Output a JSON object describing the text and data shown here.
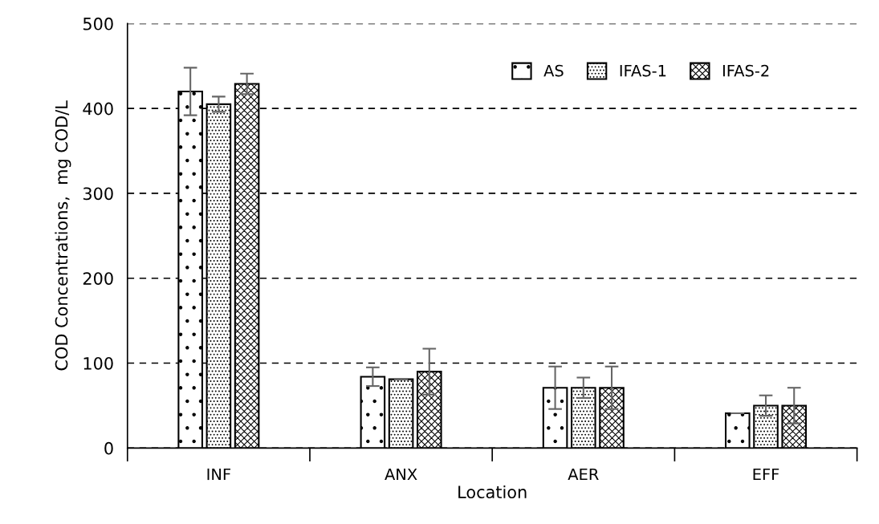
{
  "chart_data": {
    "type": "bar",
    "xlabel": "Location",
    "ylabel": "COD Concentrations,  mg COD/L",
    "categories": [
      "INF",
      "ANX",
      "AER",
      "EFF"
    ],
    "series": [
      {
        "name": "AS",
        "values": [
          420,
          84,
          71,
          41
        ],
        "errors": [
          28,
          11,
          25,
          0
        ]
      },
      {
        "name": "IFAS-1",
        "values": [
          405,
          81,
          71,
          50
        ],
        "errors": [
          9,
          0,
          12,
          12
        ]
      },
      {
        "name": "IFAS-2",
        "values": [
          429,
          90,
          71,
          50
        ],
        "errors": [
          12,
          27,
          25,
          21
        ]
      }
    ],
    "ylim": [
      0,
      500
    ],
    "yticks": [
      0,
      100,
      200,
      300,
      400,
      500
    ],
    "grid": "y",
    "legend": "top right"
  }
}
